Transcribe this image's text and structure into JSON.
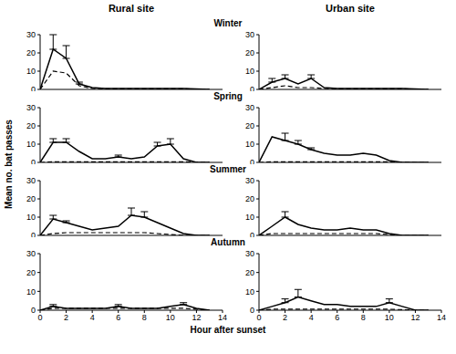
{
  "column_titles": [
    "Rural site",
    "Urban site"
  ],
  "row_titles": [
    "Winter",
    "Spring",
    "Summer",
    "Autumn"
  ],
  "xlabel": "Hour after sunset",
  "ylabel": "Mean no. bat passes",
  "chart_data": [
    {
      "type": "line",
      "x": [
        0,
        1,
        2,
        3,
        4,
        5,
        6,
        7,
        8,
        9,
        10,
        11,
        12,
        13
      ],
      "xlim": [
        0,
        14
      ],
      "xticks": [
        0,
        2,
        4,
        6,
        8,
        10,
        12,
        14
      ],
      "ylim": [
        0,
        30
      ],
      "yticks": [
        0,
        10,
        20,
        30
      ],
      "tick_labels": "y",
      "series": [
        {
          "color": "#000000",
          "line_style": "solid",
          "values": [
            0,
            22,
            17,
            3,
            1,
            0.5,
            0.5,
            0.5,
            0.5,
            0.5,
            0.5,
            0.5,
            0.3,
            0
          ],
          "errors": [
            null,
            8,
            7,
            1,
            null,
            null,
            null,
            null,
            null,
            null,
            null,
            null,
            null,
            null
          ]
        },
        {
          "color": "#000000",
          "line_style": "dashed",
          "values": [
            0,
            10,
            9,
            2,
            0.5,
            0.3,
            0.3,
            0.3,
            0.3,
            0.3,
            0.3,
            0.3,
            0.2,
            0
          ],
          "errors": [
            null,
            null,
            null,
            null,
            null,
            null,
            null,
            null,
            null,
            null,
            null,
            null,
            null,
            null
          ]
        }
      ]
    },
    {
      "type": "line",
      "x": [
        0,
        1,
        2,
        3,
        4,
        5,
        6,
        7,
        8,
        9,
        10,
        11,
        12,
        13
      ],
      "xlim": [
        0,
        14
      ],
      "xticks": [
        0,
        2,
        4,
        6,
        8,
        10,
        12,
        14
      ],
      "ylim": [
        0,
        30
      ],
      "yticks": [
        0,
        10,
        20,
        30
      ],
      "tick_labels": "y",
      "series": [
        {
          "color": "#000000",
          "line_style": "solid",
          "values": [
            0,
            4,
            6,
            3,
            6,
            1,
            0.5,
            0.5,
            0.5,
            0.5,
            0.5,
            0.5,
            0.3,
            0
          ],
          "errors": [
            null,
            2,
            2,
            null,
            2,
            null,
            null,
            null,
            null,
            null,
            null,
            null,
            null,
            null
          ]
        },
        {
          "color": "#000000",
          "line_style": "dashed",
          "values": [
            0,
            1,
            2,
            1,
            1,
            0.5,
            0.3,
            0.3,
            0.3,
            0.3,
            0.3,
            0.3,
            0.2,
            0
          ],
          "errors": [
            null,
            null,
            null,
            null,
            null,
            null,
            null,
            null,
            null,
            null,
            null,
            null,
            null,
            null
          ]
        }
      ]
    },
    {
      "type": "line",
      "x": [
        0,
        1,
        2,
        3,
        4,
        5,
        6,
        7,
        8,
        9,
        10,
        11,
        12,
        13
      ],
      "xlim": [
        0,
        14
      ],
      "xticks": [
        0,
        2,
        4,
        6,
        8,
        10,
        12,
        14
      ],
      "ylim": [
        0,
        30
      ],
      "yticks": [
        0,
        10,
        20,
        30
      ],
      "tick_labels": "y",
      "series": [
        {
          "color": "#000000",
          "line_style": "solid",
          "values": [
            0,
            11,
            11,
            6,
            2,
            2,
            3,
            2,
            3,
            9,
            10,
            2,
            0,
            0
          ],
          "errors": [
            null,
            2,
            2,
            null,
            null,
            null,
            1,
            null,
            null,
            2,
            3,
            null,
            null,
            null
          ]
        },
        {
          "color": "#000000",
          "line_style": "dashed",
          "values": [
            0,
            0.3,
            0.3,
            0.3,
            0.3,
            0.3,
            0.3,
            0.3,
            0.3,
            0.3,
            0.3,
            0.3,
            0.2,
            0
          ],
          "errors": [
            null,
            null,
            null,
            null,
            null,
            null,
            null,
            null,
            null,
            null,
            null,
            null,
            null,
            null
          ]
        }
      ]
    },
    {
      "type": "line",
      "x": [
        0,
        1,
        2,
        3,
        4,
        5,
        6,
        7,
        8,
        9,
        10,
        11,
        12,
        13
      ],
      "xlim": [
        0,
        14
      ],
      "xticks": [
        0,
        2,
        4,
        6,
        8,
        10,
        12,
        14
      ],
      "ylim": [
        0,
        30
      ],
      "yticks": [
        0,
        10,
        20,
        30
      ],
      "tick_labels": "y",
      "series": [
        {
          "color": "#000000",
          "line_style": "solid",
          "values": [
            0,
            14,
            12,
            10,
            7,
            5,
            4,
            4,
            5,
            4,
            1,
            0,
            0,
            0
          ],
          "errors": [
            null,
            null,
            4,
            2,
            1,
            null,
            null,
            null,
            null,
            null,
            null,
            null,
            null,
            null
          ]
        },
        {
          "color": "#000000",
          "line_style": "dashed",
          "values": [
            0,
            0.3,
            0.3,
            0.3,
            0.3,
            0.3,
            0.3,
            0.3,
            0.3,
            0.3,
            0.3,
            0.2,
            0,
            0
          ],
          "errors": [
            null,
            null,
            null,
            null,
            null,
            null,
            null,
            null,
            null,
            null,
            null,
            null,
            null,
            null
          ]
        }
      ]
    },
    {
      "type": "line",
      "x": [
        0,
        1,
        2,
        3,
        4,
        5,
        6,
        7,
        8,
        9,
        10,
        11,
        12,
        13
      ],
      "xlim": [
        0,
        14
      ],
      "xticks": [
        0,
        2,
        4,
        6,
        8,
        10,
        12,
        14
      ],
      "ylim": [
        0,
        30
      ],
      "yticks": [
        0,
        10,
        20,
        30
      ],
      "tick_labels": "y",
      "series": [
        {
          "color": "#000000",
          "line_style": "solid",
          "values": [
            0,
            9,
            7,
            5,
            3,
            4,
            5,
            11,
            10,
            7,
            4,
            1,
            0,
            0
          ],
          "errors": [
            null,
            2,
            1,
            null,
            null,
            null,
            null,
            4,
            3,
            null,
            null,
            null,
            null,
            null
          ]
        },
        {
          "color": "#000000",
          "line_style": "dashed",
          "values": [
            0,
            1,
            1.5,
            1.5,
            1.5,
            1.5,
            1.5,
            1.5,
            1.5,
            1,
            0.5,
            0,
            0,
            0
          ],
          "errors": [
            null,
            null,
            null,
            null,
            null,
            null,
            null,
            null,
            null,
            null,
            null,
            null,
            null,
            null
          ]
        }
      ]
    },
    {
      "type": "line",
      "x": [
        0,
        1,
        2,
        3,
        4,
        5,
        6,
        7,
        8,
        9,
        10,
        11,
        12,
        13
      ],
      "xlim": [
        0,
        14
      ],
      "xticks": [
        0,
        2,
        4,
        6,
        8,
        10,
        12,
        14
      ],
      "ylim": [
        0,
        30
      ],
      "yticks": [
        0,
        10,
        20,
        30
      ],
      "tick_labels": "y",
      "series": [
        {
          "color": "#000000",
          "line_style": "solid",
          "values": [
            0,
            5,
            10,
            6,
            4,
            3,
            3,
            4,
            3,
            3,
            1,
            0,
            0,
            0
          ],
          "errors": [
            null,
            null,
            3,
            null,
            null,
            null,
            null,
            null,
            null,
            null,
            null,
            null,
            null,
            null
          ]
        },
        {
          "color": "#000000",
          "line_style": "dashed",
          "values": [
            0,
            1,
            1,
            1,
            1,
            1,
            1,
            1,
            1,
            1,
            0.5,
            0,
            0,
            0
          ],
          "errors": [
            null,
            null,
            null,
            null,
            null,
            null,
            null,
            null,
            null,
            null,
            null,
            null,
            null,
            null
          ]
        }
      ]
    },
    {
      "type": "line",
      "x": [
        0,
        1,
        2,
        3,
        4,
        5,
        6,
        7,
        8,
        9,
        10,
        11,
        12,
        13
      ],
      "xlim": [
        0,
        14
      ],
      "xticks": [
        0,
        2,
        4,
        6,
        8,
        10,
        12,
        14
      ],
      "ylim": [
        0,
        30
      ],
      "yticks": [
        0,
        10,
        20,
        30
      ],
      "tick_labels": true,
      "series": [
        {
          "color": "#000000",
          "line_style": "solid",
          "values": [
            0,
            2,
            1,
            1,
            1,
            1,
            2,
            1,
            1,
            1,
            2,
            3,
            1,
            0
          ],
          "errors": [
            null,
            1,
            null,
            null,
            null,
            null,
            1,
            null,
            null,
            null,
            null,
            1,
            null,
            null
          ]
        },
        {
          "color": "#000000",
          "line_style": "dashed",
          "values": [
            0,
            1,
            1,
            1,
            1,
            1,
            1,
            1,
            1,
            1,
            1,
            1,
            0.5,
            0
          ],
          "errors": [
            null,
            null,
            null,
            null,
            null,
            null,
            null,
            null,
            null,
            null,
            null,
            null,
            null,
            null
          ]
        }
      ]
    },
    {
      "type": "line",
      "x": [
        0,
        1,
        2,
        3,
        4,
        5,
        6,
        7,
        8,
        9,
        10,
        11,
        12,
        13
      ],
      "xlim": [
        0,
        14
      ],
      "xticks": [
        0,
        2,
        4,
        6,
        8,
        10,
        12,
        14
      ],
      "ylim": [
        0,
        30
      ],
      "yticks": [
        0,
        10,
        20,
        30
      ],
      "tick_labels": true,
      "series": [
        {
          "color": "#000000",
          "line_style": "solid",
          "values": [
            0,
            2,
            4,
            7,
            5,
            3,
            3,
            2,
            2,
            2,
            4,
            2,
            0,
            0
          ],
          "errors": [
            null,
            null,
            2,
            4,
            null,
            null,
            null,
            null,
            null,
            null,
            2,
            null,
            null,
            null
          ]
        },
        {
          "color": "#000000",
          "line_style": "dashed",
          "values": [
            0,
            0.5,
            0.5,
            0.5,
            0.5,
            0.5,
            0.5,
            0.5,
            0.5,
            0.5,
            0.5,
            0.3,
            0,
            0
          ],
          "errors": [
            null,
            null,
            null,
            null,
            null,
            null,
            null,
            null,
            null,
            null,
            null,
            null,
            null,
            null
          ]
        }
      ]
    }
  ]
}
